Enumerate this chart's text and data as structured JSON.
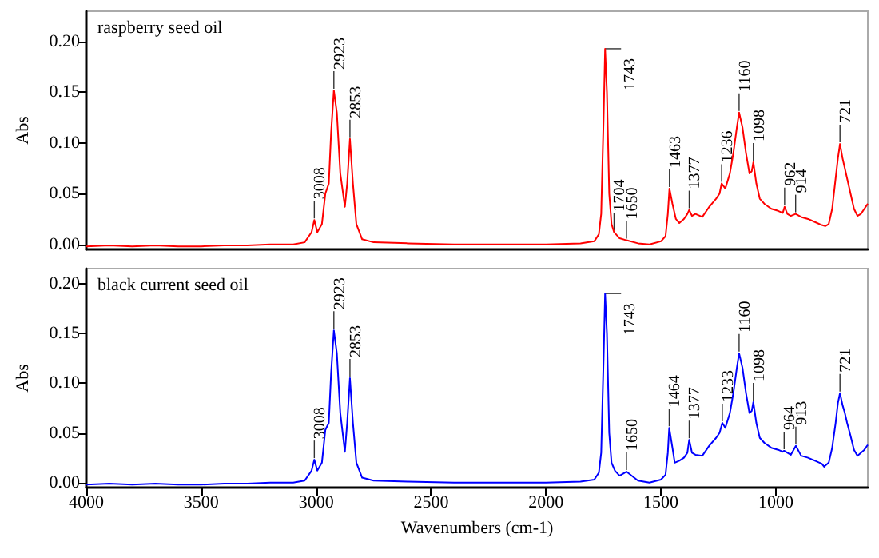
{
  "chart_data": [
    {
      "type": "line",
      "title": "raspberry seed oil",
      "ylabel": "Abs",
      "xlim": [
        4000,
        600
      ],
      "xticks": [
        4000,
        3500,
        3000,
        2500,
        2000,
        1500,
        1000
      ],
      "ylim": [
        -0.005,
        0.23
      ],
      "yticks": [
        {
          "value": 0,
          "label": "0.00"
        },
        {
          "value": 0.05,
          "label": "0.05"
        },
        {
          "value": 0.1,
          "label": "0.10"
        },
        {
          "value": 0.15,
          "label": "0.15"
        },
        {
          "value": 0.2,
          "label": "0.20"
        }
      ],
      "tick_labels": "y",
      "grid": false,
      "series": [
        {
          "color": "#ff0000",
          "x": [
            4000,
            3900,
            3800,
            3700,
            3600,
            3500,
            3400,
            3300,
            3200,
            3100,
            3050,
            3020,
            3008,
            2995,
            2975,
            2960,
            2945,
            2935,
            2923,
            2910,
            2895,
            2875,
            2865,
            2853,
            2840,
            2825,
            2800,
            2750,
            2600,
            2400,
            2200,
            2000,
            1850,
            1790,
            1770,
            1760,
            1750,
            1743,
            1735,
            1725,
            1715,
            1704,
            1680,
            1650,
            1600,
            1550,
            1500,
            1480,
            1470,
            1463,
            1450,
            1435,
            1420,
            1400,
            1385,
            1377,
            1365,
            1350,
            1320,
            1290,
            1260,
            1245,
            1236,
            1220,
            1200,
            1185,
            1170,
            1160,
            1145,
            1130,
            1115,
            1105,
            1098,
            1085,
            1070,
            1050,
            1020,
            990,
            970,
            962,
            950,
            935,
            914,
            890,
            860,
            830,
            800,
            785,
            770,
            755,
            740,
            730,
            721,
            710,
            700,
            690,
            675,
            660,
            645,
            630,
            615,
            600
          ],
          "values": [
            -0.002,
            -0.001,
            -0.002,
            -0.001,
            -0.002,
            -0.002,
            -0.001,
            -0.001,
            0,
            0,
            0.002,
            0.012,
            0.024,
            0.012,
            0.02,
            0.05,
            0.06,
            0.11,
            0.152,
            0.13,
            0.07,
            0.037,
            0.06,
            0.104,
            0.06,
            0.02,
            0.005,
            0.002,
            0.001,
            0,
            0,
            0,
            0.001,
            0.003,
            0.01,
            0.03,
            0.12,
            0.193,
            0.15,
            0.05,
            0.02,
            0.012,
            0.006,
            0.004,
            0.001,
            0,
            0.003,
            0.008,
            0.03,
            0.055,
            0.04,
            0.025,
            0.021,
            0.025,
            0.03,
            0.034,
            0.028,
            0.03,
            0.027,
            0.037,
            0.045,
            0.05,
            0.06,
            0.055,
            0.07,
            0.09,
            0.115,
            0.13,
            0.115,
            0.09,
            0.07,
            0.072,
            0.081,
            0.06,
            0.045,
            0.04,
            0.035,
            0.033,
            0.031,
            0.037,
            0.03,
            0.028,
            0.03,
            0.027,
            0.025,
            0.022,
            0.019,
            0.018,
            0.02,
            0.035,
            0.065,
            0.085,
            0.099,
            0.085,
            0.075,
            0.065,
            0.05,
            0.035,
            0.028,
            0.03,
            0.035,
            0.04
          ]
        }
      ],
      "annotations": [
        {
          "text": "3008",
          "x": 3008,
          "y": 0.024
        },
        {
          "text": "2923",
          "x": 2923,
          "y": 0.152
        },
        {
          "text": "2853",
          "x": 2853,
          "y": 0.104
        },
        {
          "text": "1743",
          "x": 1743,
          "y": 0.193
        },
        {
          "text": "1650",
          "x": 1650,
          "y": 0.004
        },
        {
          "text": "1704",
          "x": 1704,
          "y": 0.012
        },
        {
          "text": "1463",
          "x": 1463,
          "y": 0.055
        },
        {
          "text": "1377",
          "x": 1377,
          "y": 0.034
        },
        {
          "text": "1236",
          "x": 1236,
          "y": 0.06
        },
        {
          "text": "1160",
          "x": 1160,
          "y": 0.13
        },
        {
          "text": "1098",
          "x": 1098,
          "y": 0.081
        },
        {
          "text": "962",
          "x": 962,
          "y": 0.037
        },
        {
          "text": "914",
          "x": 914,
          "y": 0.03
        },
        {
          "text": "721",
          "x": 721,
          "y": 0.099
        }
      ]
    },
    {
      "type": "line",
      "title": "black current seed oil",
      "ylabel": "Abs",
      "xlabel": "Wavenumbers (cm-1)",
      "xlim": [
        4000,
        600
      ],
      "xticks": [
        4000,
        3500,
        3000,
        2500,
        2000,
        1500,
        1000
      ],
      "ylim": [
        -0.005,
        0.215
      ],
      "yticks": [
        {
          "value": 0,
          "label": "0.00"
        },
        {
          "value": 0.05,
          "label": "0.05"
        },
        {
          "value": 0.1,
          "label": "0.10"
        },
        {
          "value": 0.15,
          "label": "0.15"
        },
        {
          "value": 0.2,
          "label": "0.20"
        }
      ],
      "grid": false,
      "series": [
        {
          "color": "#0000ff",
          "x": [
            4000,
            3900,
            3800,
            3700,
            3600,
            3500,
            3400,
            3300,
            3200,
            3100,
            3050,
            3020,
            3008,
            2995,
            2975,
            2960,
            2945,
            2935,
            2923,
            2910,
            2895,
            2875,
            2865,
            2853,
            2840,
            2825,
            2800,
            2750,
            2600,
            2400,
            2200,
            2000,
            1850,
            1790,
            1770,
            1760,
            1750,
            1743,
            1735,
            1725,
            1715,
            1700,
            1680,
            1650,
            1600,
            1550,
            1500,
            1480,
            1470,
            1464,
            1450,
            1440,
            1420,
            1400,
            1385,
            1377,
            1365,
            1350,
            1320,
            1290,
            1260,
            1245,
            1233,
            1220,
            1200,
            1185,
            1170,
            1160,
            1145,
            1130,
            1115,
            1105,
            1098,
            1085,
            1070,
            1050,
            1020,
            990,
            970,
            964,
            950,
            935,
            913,
            890,
            860,
            830,
            800,
            790,
            770,
            755,
            740,
            730,
            721,
            710,
            700,
            690,
            675,
            660,
            645,
            630,
            615,
            600
          ],
          "values": [
            -0.002,
            -0.001,
            -0.002,
            -0.001,
            -0.002,
            -0.002,
            -0.001,
            -0.001,
            0,
            0,
            0.002,
            0.012,
            0.023,
            0.012,
            0.02,
            0.053,
            0.06,
            0.11,
            0.153,
            0.13,
            0.07,
            0.031,
            0.06,
            0.105,
            0.06,
            0.02,
            0.005,
            0.002,
            0.001,
            0,
            0,
            0,
            0.001,
            0.003,
            0.01,
            0.03,
            0.12,
            0.19,
            0.15,
            0.05,
            0.02,
            0.012,
            0.007,
            0.011,
            0.002,
            0,
            0.003,
            0.008,
            0.03,
            0.055,
            0.035,
            0.02,
            0.022,
            0.025,
            0.03,
            0.043,
            0.03,
            0.028,
            0.027,
            0.037,
            0.045,
            0.05,
            0.06,
            0.055,
            0.07,
            0.09,
            0.115,
            0.13,
            0.115,
            0.09,
            0.07,
            0.072,
            0.081,
            0.06,
            0.045,
            0.04,
            0.035,
            0.033,
            0.031,
            0.032,
            0.03,
            0.028,
            0.037,
            0.027,
            0.025,
            0.022,
            0.019,
            0.016,
            0.02,
            0.035,
            0.06,
            0.08,
            0.09,
            0.078,
            0.07,
            0.06,
            0.047,
            0.033,
            0.027,
            0.03,
            0.033,
            0.038
          ]
        }
      ],
      "annotations": [
        {
          "text": "3008",
          "x": 3008,
          "y": 0.023
        },
        {
          "text": "2923",
          "x": 2923,
          "y": 0.153
        },
        {
          "text": "2853",
          "x": 2853,
          "y": 0.105
        },
        {
          "text": "1743",
          "x": 1743,
          "y": 0.19
        },
        {
          "text": "1650",
          "x": 1650,
          "y": 0.011
        },
        {
          "text": "1464",
          "x": 1464,
          "y": 0.055
        },
        {
          "text": "1377",
          "x": 1377,
          "y": 0.043
        },
        {
          "text": "1233",
          "x": 1233,
          "y": 0.06
        },
        {
          "text": "1160",
          "x": 1160,
          "y": 0.13
        },
        {
          "text": "1098",
          "x": 1098,
          "y": 0.081
        },
        {
          "text": "964",
          "x": 964,
          "y": 0.032
        },
        {
          "text": "913",
          "x": 913,
          "y": 0.037
        },
        {
          "text": "721",
          "x": 721,
          "y": 0.09
        }
      ]
    }
  ]
}
